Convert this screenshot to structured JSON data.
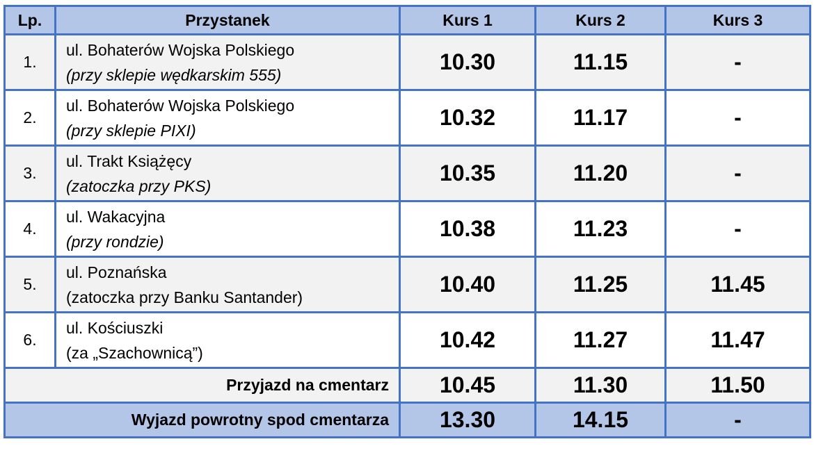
{
  "table": {
    "header": [
      "Lp.",
      "Przystanek",
      "Kurs 1",
      "Kurs 2",
      "Kurs 3"
    ],
    "rows": [
      {
        "lp": "1.",
        "street": "ul. Bohaterów Wojska Polskiego",
        "note": "(przy sklepie wędkarskim 555)",
        "note_italic": true,
        "times": [
          "10.30",
          "11.15",
          "-"
        ]
      },
      {
        "lp": "2.",
        "street": "ul. Bohaterów Wojska Polskiego",
        "note": "(przy sklepie PIXI)",
        "note_italic": true,
        "times": [
          "10.32",
          "11.17",
          "-"
        ]
      },
      {
        "lp": "3.",
        "street": "ul. Trakt Książęcy",
        "note": "(zatoczka przy PKS)",
        "note_italic": true,
        "times": [
          "10.35",
          "11.20",
          "-"
        ]
      },
      {
        "lp": "4.",
        "street": "ul. Wakacyjna",
        "note": "(przy rondzie)",
        "note_italic": true,
        "times": [
          "10.38",
          "11.23",
          "-"
        ]
      },
      {
        "lp": "5.",
        "street": "ul. Poznańska",
        "note": "(zatoczka przy Banku Santander)",
        "note_italic": false,
        "times": [
          "10.40",
          "11.25",
          "11.45"
        ]
      },
      {
        "lp": "6.",
        "street": "ul. Kościuszki",
        "note": "(za „Szachownicą”)",
        "note_italic": false,
        "times": [
          "10.42",
          "11.27",
          "11.47"
        ]
      }
    ],
    "footer": [
      {
        "label": "Przyjazd na cmentarz",
        "times": [
          "10.45",
          "11.30",
          "11.50"
        ]
      },
      {
        "label": "Wyjazd powrotny spod cmentarza",
        "times": [
          "13.30",
          "14.15",
          "-"
        ]
      }
    ]
  }
}
